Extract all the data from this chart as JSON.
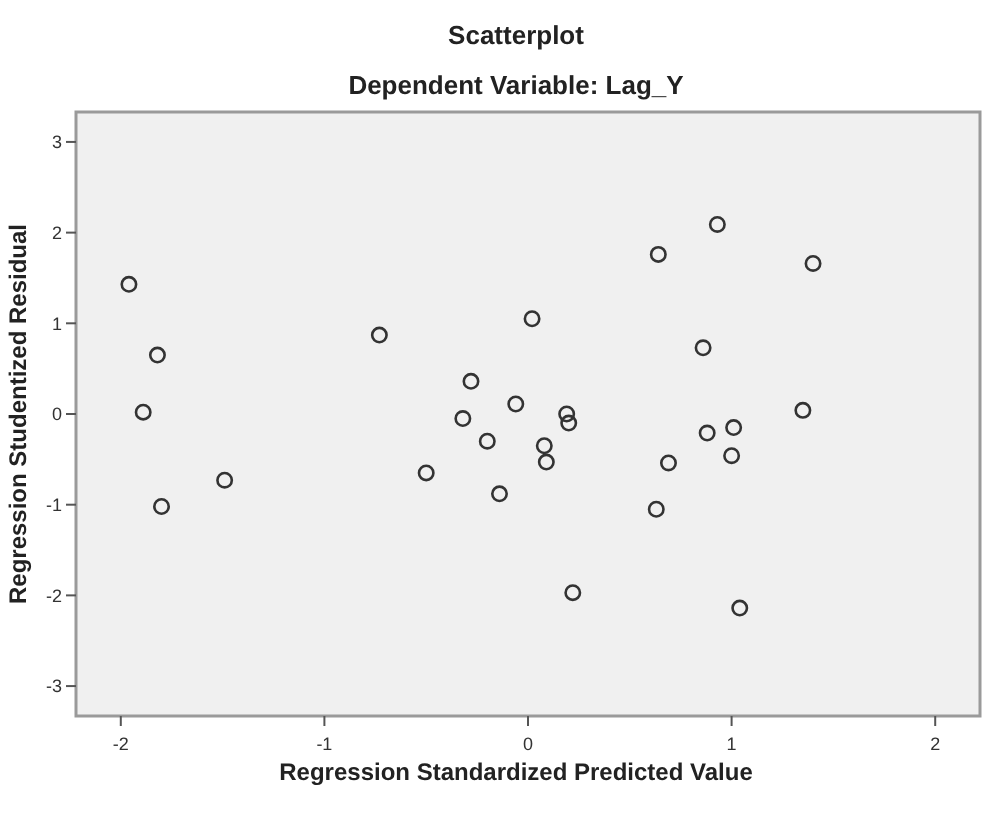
{
  "chart_data": {
    "type": "scatter",
    "title": "Scatterplot",
    "subtitle": "Dependent Variable: Lag_Y",
    "xlabel": "Regression Standardized Predicted Value",
    "ylabel": "Regression Studentized Residual",
    "xlim": [
      -2.22,
      2.22
    ],
    "ylim": [
      -3.33,
      3.33
    ],
    "xticks": [
      -2,
      -1,
      0,
      1,
      2
    ],
    "yticks": [
      -3,
      -2,
      -1,
      0,
      1,
      2,
      3
    ],
    "grid": false,
    "marker": "circle",
    "series": [
      {
        "color": "#333333",
        "x": [
          -1.96,
          -1.82,
          -1.89,
          -1.8,
          -1.49,
          -0.73,
          -0.5,
          -0.32,
          -0.28,
          -0.2,
          -0.14,
          -0.06,
          0.02,
          0.08,
          0.09,
          0.19,
          0.2,
          0.22,
          0.63,
          0.64,
          0.69,
          0.86,
          0.88,
          0.93,
          1.0,
          1.01,
          1.04,
          1.35,
          1.4
        ],
        "values": [
          1.43,
          0.65,
          0.02,
          -1.02,
          -0.73,
          0.87,
          -0.65,
          -0.05,
          0.36,
          -0.3,
          -0.88,
          0.11,
          1.05,
          -0.35,
          -0.53,
          0.0,
          -0.1,
          -1.97,
          -1.05,
          1.76,
          -0.54,
          0.73,
          -0.21,
          2.09,
          -0.46,
          -0.15,
          -2.14,
          0.04,
          1.66
        ]
      }
    ]
  }
}
